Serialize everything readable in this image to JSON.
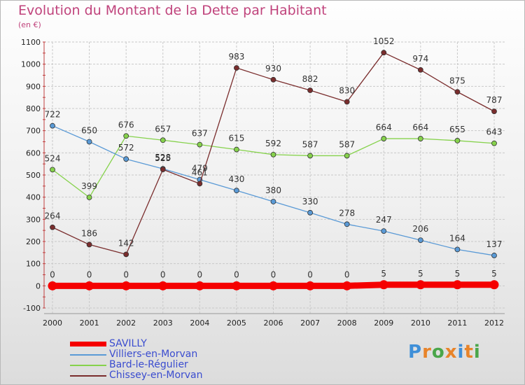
{
  "chart_title": "Evolution du Montant de la Dette par Habitant",
  "chart_subtitle": "(en €)",
  "logo_text": "Proxiti",
  "colors": {
    "title": "#c0437c",
    "grid": "#c9c9c9",
    "axis_text": "#222222",
    "label_text": "#333333",
    "legend_text": "#3a4ccf"
  },
  "chart_data": {
    "type": "line",
    "title": "Evolution du Montant de la Dette par Habitant",
    "subtitle": "(en €)",
    "xlabel": "",
    "ylabel": "",
    "ylim": [
      -100,
      1100
    ],
    "yticks": [
      -100,
      0,
      100,
      200,
      300,
      400,
      500,
      600,
      700,
      800,
      900,
      1000,
      1100
    ],
    "grid": true,
    "legend_position": "bottom-left",
    "categories": [
      "2000",
      "2001",
      "2002",
      "2003",
      "2004",
      "2005",
      "2006",
      "2007",
      "2008",
      "2009",
      "2010",
      "2011",
      "2012"
    ],
    "series": [
      {
        "name": "SAVILLY",
        "color": "#f50000",
        "values": [
          0,
          0,
          0,
          0,
          0,
          0,
          0,
          0,
          0,
          5,
          5,
          5,
          5
        ],
        "labels": [
          "0",
          "0",
          "0",
          "0",
          "0",
          "0",
          "0",
          "0",
          "0",
          "5",
          "5",
          "5",
          "5"
        ]
      },
      {
        "name": "Villiers-en-Morvan",
        "color": "#5a9ad6",
        "values": [
          722,
          650,
          572,
          528,
          479,
          430,
          380,
          330,
          278,
          247,
          206,
          164,
          137
        ],
        "labels": [
          "722",
          "650",
          "572",
          "528",
          "479",
          "430",
          "380",
          "330",
          "278",
          "247",
          "206",
          "164",
          "137"
        ]
      },
      {
        "name": "Bard-le-Régulier",
        "color": "#86d24c",
        "values": [
          524,
          399,
          676,
          657,
          637,
          615,
          592,
          587,
          587,
          664,
          664,
          655,
          643
        ],
        "labels": [
          "524",
          "399",
          "676",
          "657",
          "637",
          "615",
          "592",
          "587",
          "587",
          "664",
          "664",
          "655",
          "643"
        ]
      },
      {
        "name": "Chissey-en-Morvan",
        "color": "#7a2d2d",
        "values": [
          264,
          186,
          142,
          525,
          461,
          983,
          930,
          882,
          830,
          1052,
          974,
          875,
          787
        ],
        "labels": [
          "264",
          "186",
          "142",
          "525",
          "461",
          "983",
          "930",
          "882",
          "830",
          "1052",
          "974",
          "875",
          "787"
        ]
      }
    ]
  }
}
